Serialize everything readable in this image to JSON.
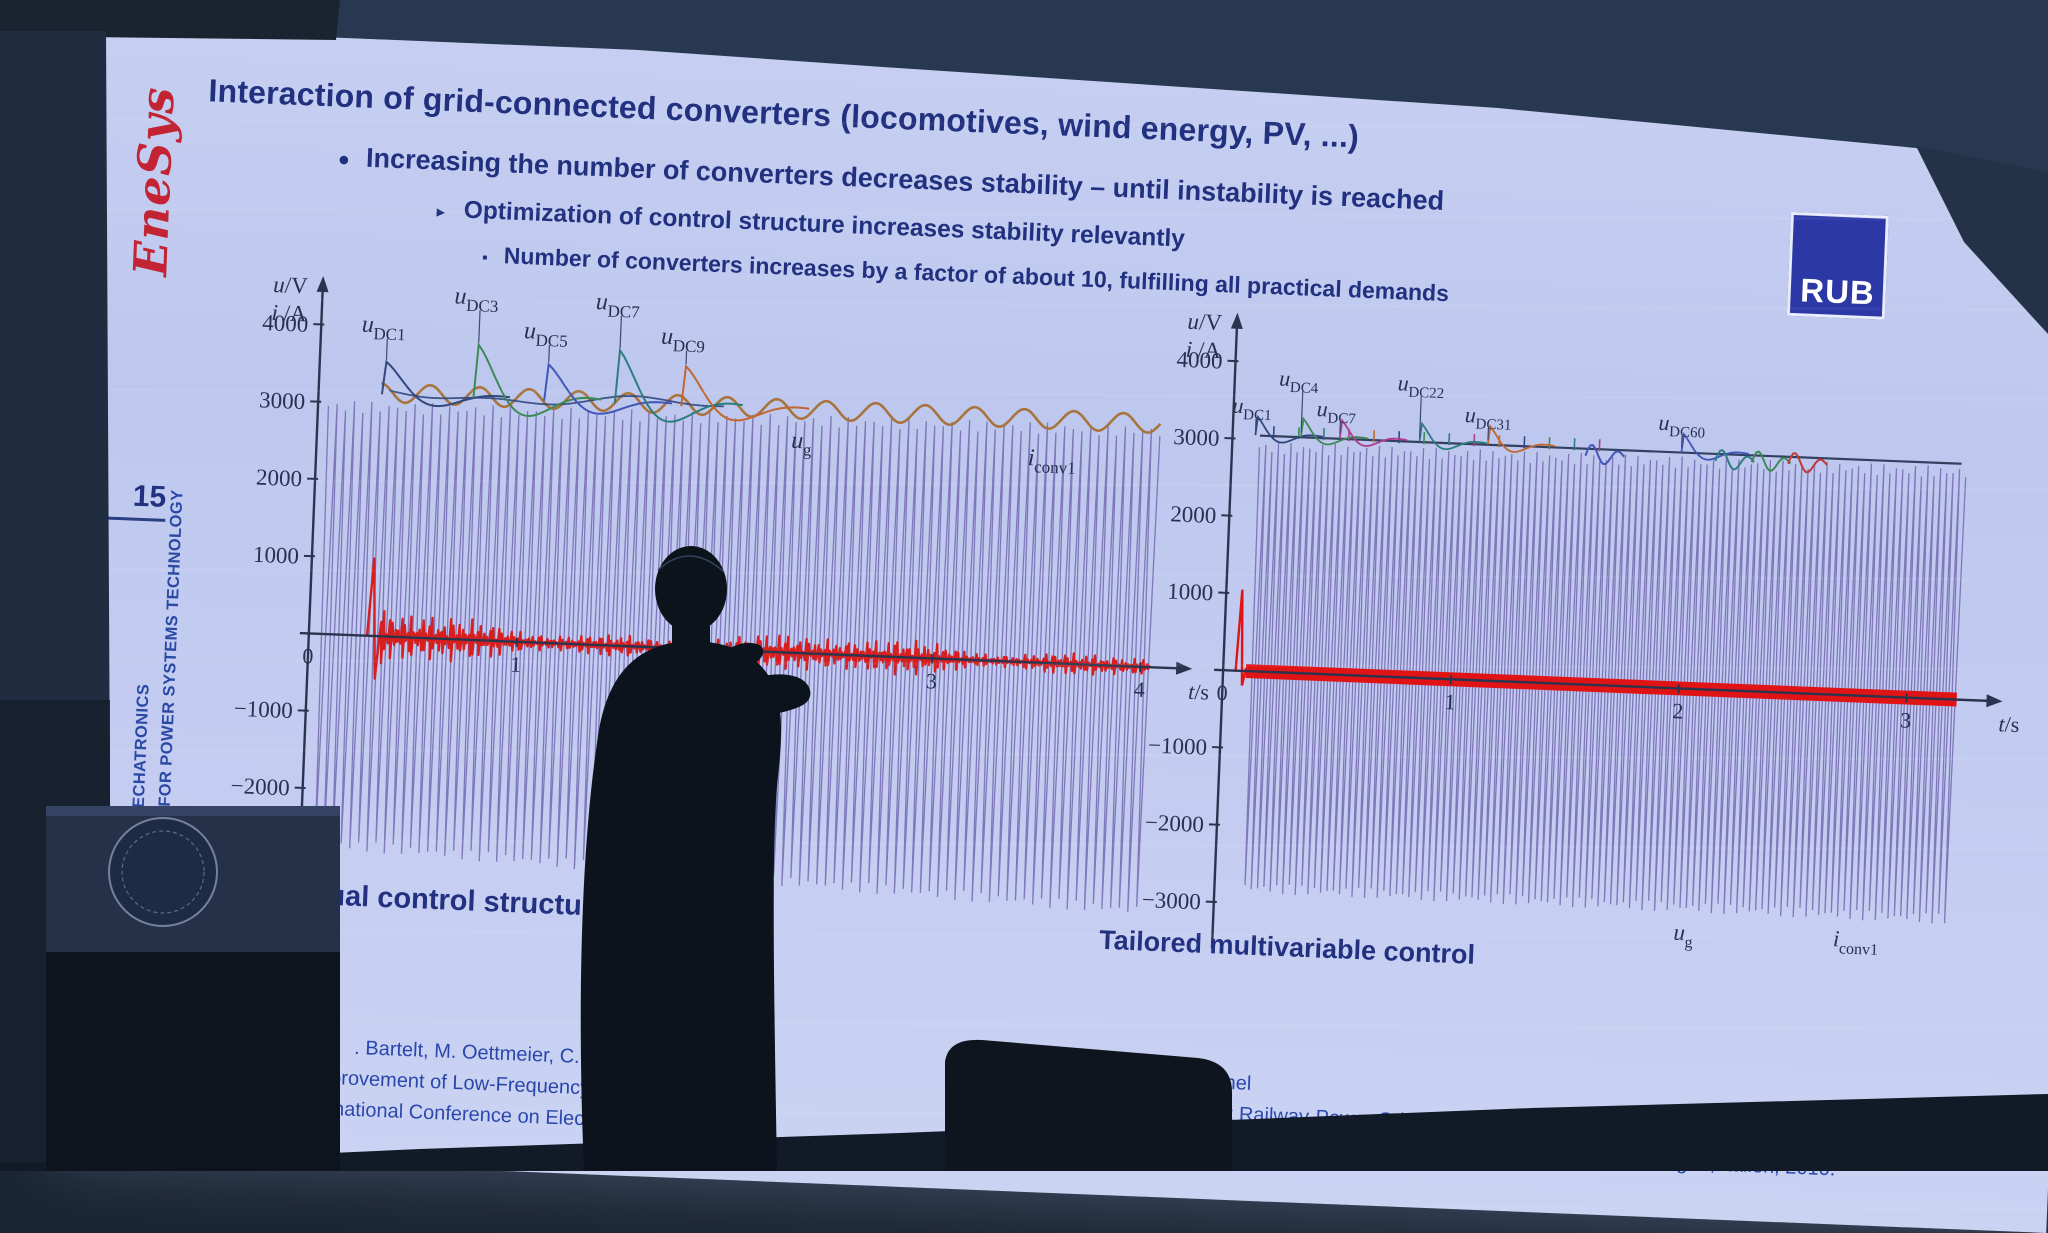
{
  "slide": {
    "title": "Interaction of grid-connected converters (locomotives, wind energy, PV, ...)",
    "bullets": [
      {
        "marker": "●",
        "text": "Increasing the number of converters decreases stability – until instability is reached"
      },
      {
        "marker": "►",
        "text": "Optimization of control structure increases stability relevantly"
      },
      {
        "marker": "▪",
        "text": "Number of converters increases by a factor of about 10, fulfilling all practical demands"
      }
    ],
    "rub_text": "RUB",
    "sidebar": {
      "logo_text": "EneSys",
      "page_number": "15",
      "institute_line1": "E FOR POWER SYSTEMS TECHNOLOGY",
      "institute_line2": "MECHATRONICS"
    },
    "reference": {
      "lines": [
        {
          "left": ". Bartelt, M. Oettmeier, C. Heising, V.",
          "right": "eimel"
        },
        {
          "left": "nprovement of Low-Frequency System",
          "right": "-Hz Railway-Power Grids by Multivariable Line-Converter Control in a Multiple Traction-Vehicle Scenario"
        },
        {
          "left": "ternational Conference on Electrical Sys",
          "right": "aft, Railway and Ship Propulsion (ESARS 2010), Bologna, Italien, 2010."
        }
      ]
    }
  },
  "scene": {
    "presenter": "dark silhouette of presenter gesturing in front of projection screen"
  },
  "colors": {
    "slide_bg": "#c2cbf0",
    "slide_text": "#21307f",
    "enesys_red": "#c32433",
    "rub_blue": "#2b38a6",
    "oscillation_purple": "#7264ad",
    "current_red": "#d81f1f",
    "room_dark": "#1b2634"
  },
  "chart_data": [
    {
      "id": "usual",
      "type": "line",
      "caption": "Usual control structure",
      "y_axis_label_line1": "u/V",
      "y_axis_label_line2": "i /A",
      "x_axis_label": "t/s",
      "xlim": [
        0,
        4.2
      ],
      "ylim": [
        -3600,
        4600
      ],
      "yticks": [
        4000,
        3000,
        2000,
        1000,
        -1000,
        -2000
      ],
      "xticks": [
        0,
        1,
        2,
        3,
        4
      ],
      "dc_link_labels": [
        {
          "sub": "DC1",
          "t": 0.32,
          "peak": 3550,
          "row": "low",
          "color": "#31487e"
        },
        {
          "sub": "DC3",
          "t": 0.76,
          "peak": 3820,
          "row": "high",
          "color": "#3d8a57"
        },
        {
          "sub": "DC5",
          "t": 1.1,
          "peak": 3600,
          "row": "low",
          "color": "#4156b8"
        },
        {
          "sub": "DC7",
          "t": 1.44,
          "peak": 3820,
          "row": "high",
          "color": "#2e7d7d"
        },
        {
          "sub": "DC9",
          "t": 1.76,
          "peak": 3650,
          "row": "low",
          "color": "#c2672f"
        }
      ],
      "bundle": {
        "color": "#31487e",
        "t_start": 0.34,
        "t_end": 1.95,
        "level": 3150
      },
      "grid_voltage": {
        "label": "u",
        "label_sub": "g",
        "mean": 3150,
        "amplitude": 120,
        "cycles": 17,
        "color": "#a8743e",
        "label_t": 2.28,
        "label_level": 2650
      },
      "oscillation_band": {
        "color": "#7264ad",
        "t_start": 0.05,
        "t_end": 4.05,
        "top_start": 2950,
        "top_end": 3050,
        "bottom_start": -2700,
        "bottom_end": -3150,
        "cycles": 96
      },
      "converter_current": {
        "label": "i",
        "label_sub": "conv1",
        "color": "#d81f1f",
        "spike_t": 0.3,
        "spike_peak": 1000,
        "spike_min": -550,
        "band": 165,
        "label_t": 3.42,
        "label_level": 2550
      },
      "stability_note": "oscillation amplitude grows - instability"
    },
    {
      "id": "tailored",
      "type": "line",
      "caption": "Tailored multivariable control",
      "y_axis_label_line1": "u/V",
      "y_axis_label_line2": "i /A",
      "x_axis_label": "t/s",
      "xlim": [
        0,
        3.4
      ],
      "ylim": [
        -3600,
        4600
      ],
      "yticks": [
        4000,
        3000,
        2000,
        1000,
        -1000,
        -2000,
        -3000
      ],
      "xticks": [
        0,
        1,
        2,
        3
      ],
      "dc_link_labels": [
        {
          "sub": "DC1",
          "t": 0.1,
          "row": "low",
          "color": "#31487e"
        },
        {
          "sub": "DC4",
          "t": 0.3,
          "row": "high",
          "color": "#3d8a57"
        },
        {
          "sub": "DC7",
          "t": 0.47,
          "row": "low",
          "color": "#b03a8c"
        },
        {
          "sub": "DC22",
          "t": 0.82,
          "row": "high",
          "color": "#2e7d7d"
        },
        {
          "sub": "DC31",
          "t": 1.12,
          "row": "low",
          "color": "#c2672f"
        },
        {
          "sub": "DC60",
          "t": 1.97,
          "row": "low",
          "color": "#4156b8"
        }
      ],
      "dc_line": {
        "level": 3050,
        "t_start": 0.12,
        "t_end": 3.2,
        "color": "#33405f",
        "pulse_colors": [
          "#31487e",
          "#3d8a57",
          "#2e7d7d",
          "#b03a8c",
          "#c2672f"
        ]
      },
      "extra_transients": [
        {
          "t": 1.55,
          "color": "#4156b8"
        },
        {
          "t": 2.12,
          "color": "#2e7d7d"
        },
        {
          "t": 2.28,
          "color": "#3d8a57"
        },
        {
          "t": 2.44,
          "color": "#c03a3a"
        }
      ],
      "oscillation_band": {
        "color": "#7264ad",
        "t_start": 0.12,
        "t_end": 3.22,
        "top_start": 2900,
        "top_end": 2940,
        "bottom_start": -2800,
        "bottom_end": -2840,
        "cycles": 112
      },
      "converter_current": {
        "label": "i",
        "label_sub": "conv1",
        "color": "#e01414",
        "spike_t": 0.07,
        "spike_peak": 1050,
        "spike_min": -190,
        "band": 90,
        "label_t": 2.72,
        "label_level": -3250
      },
      "grid_voltage_label": {
        "label": "u",
        "label_sub": "g",
        "t": 2.02,
        "level": -3250
      },
      "stability_note": "oscillation amplitude constant - stable"
    }
  ]
}
